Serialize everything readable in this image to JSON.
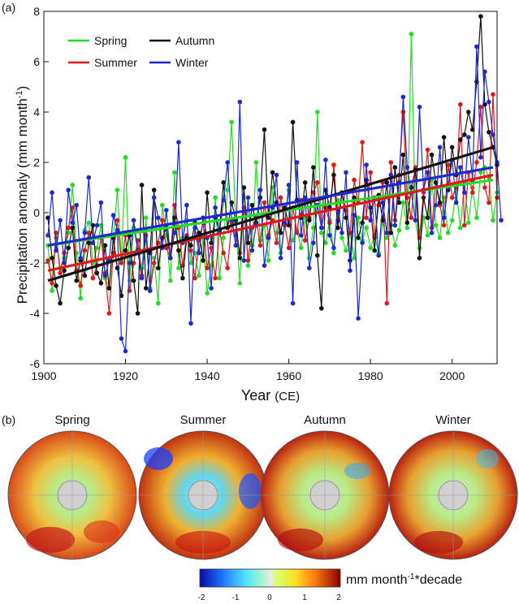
{
  "panel_a": {
    "label": "(a)",
    "ylabel_main": "Precipitation anomaly (mm month",
    "ylabel_sup": "-1",
    "ylabel_close": ")",
    "xlabel_main": "Year",
    "xlabel_unit": "(CE)"
  },
  "panel_b": {
    "label": "(b)",
    "maps": [
      {
        "title": "Spring"
      },
      {
        "title": "Summer"
      },
      {
        "title": "Autumn"
      },
      {
        "title": "Winter"
      }
    ],
    "colorbar": {
      "unit_main": "mm month",
      "unit_sup": "-1",
      "unit_tail": "*decade",
      "ticks": [
        "-2",
        "-1",
        "0",
        "1",
        "2"
      ],
      "range": [
        -2,
        2
      ]
    }
  },
  "colors": {
    "Spring": "#22dd22",
    "Summer": "#e01818",
    "Autumn": "#111111",
    "Winter": "#1a2ad0"
  },
  "chart_data": {
    "type": "line",
    "xlim": [
      1900,
      2011
    ],
    "ylim": [
      -6,
      8
    ],
    "xticks": [
      1900,
      1920,
      1940,
      1960,
      1980,
      2000
    ],
    "yticks": [
      -6,
      -4,
      -2,
      0,
      2,
      4,
      6,
      8
    ],
    "grid": false,
    "legend_position": "top-left",
    "x_start": 1901,
    "series": [
      {
        "name": "Spring",
        "values": [
          -1.3,
          -3.1,
          -1.0,
          -2.2,
          -1.8,
          -0.8,
          1.1,
          -1.6,
          -3.4,
          -0.7,
          -0.4,
          -2.0,
          -1.4,
          -0.5,
          -2.6,
          -3.0,
          -1.0,
          0.9,
          -1.9,
          2.2,
          -2.7,
          -0.6,
          -1.5,
          -2.2,
          -0.2,
          -3.0,
          -1.8,
          -3.6,
          0.3,
          -0.9,
          -2.7,
          1.6,
          -2.2,
          -1.0,
          -0.3,
          -2.0,
          -1.6,
          -2.5,
          -1.0,
          -3.2,
          -2.1,
          0.6,
          -2.6,
          -1.0,
          0.9,
          3.6,
          -0.4,
          -2.8,
          1.0,
          -2.1,
          -1.3,
          2.0,
          -1.1,
          -0.5,
          -1.9,
          1.0,
          -0.8,
          -1.6,
          -0.4,
          0.9,
          -1.1,
          -0.7,
          -1.4,
          -0.2,
          -1.8,
          -0.6,
          4.0,
          -0.8,
          -1.2,
          -0.3,
          -1.6,
          0.5,
          -1.0,
          -1.5,
          -0.8,
          -1.8,
          -0.2,
          -1.1,
          -0.6,
          -1.4,
          -0.9,
          -1.6,
          -0.4,
          -1.0,
          -0.5,
          -1.3,
          -0.7,
          0.4,
          -0.6,
          7.1,
          -0.3,
          -1.4,
          -0.2,
          -0.9,
          1.3,
          -0.5,
          -1.0,
          0.6,
          -0.8,
          -0.3,
          0.9,
          -0.6,
          1.2,
          -0.4,
          1.0,
          -0.2,
          1.6,
          1.8,
          1.4,
          -0.3,
          0.8
        ]
      },
      {
        "name": "Summer",
        "values": [
          -1.9,
          -2.8,
          -0.8,
          -2.4,
          -1.6,
          -0.6,
          0.2,
          -2.3,
          -2.9,
          -1.5,
          -0.8,
          -2.6,
          -2.1,
          -1.0,
          -2.4,
          -4.0,
          -1.6,
          -0.3,
          -2.0,
          -0.9,
          -3.1,
          -2.0,
          -1.1,
          -2.5,
          -0.9,
          -3.1,
          -2.0,
          -1.2,
          -0.3,
          -1.4,
          -1.8,
          0.3,
          -0.6,
          -2.1,
          -0.9,
          -1.5,
          -2.6,
          -1.1,
          -0.4,
          -2.2,
          -1.4,
          -2.6,
          -0.7,
          -1.6,
          -2.2,
          -0.4,
          -0.9,
          -1.6,
          0.2,
          -1.9,
          -0.6,
          -0.2,
          -1.3,
          0.4,
          -0.9,
          -0.3,
          -1.2,
          0.6,
          -0.5,
          -1.4,
          0.2,
          -0.8,
          0.5,
          -1.1,
          -0.2,
          0.8,
          1.2,
          -0.6,
          0.2,
          -0.4,
          1.9,
          -0.3,
          0.8,
          0.1,
          -0.8,
          1.3,
          0.4,
          2.8,
          -0.2,
          1.6,
          -1.0,
          0.3,
          1.2,
          -3.6,
          2.0,
          -0.3,
          1.5,
          4.0,
          0.6,
          -0.2,
          1.8,
          -1.0,
          0.8,
          2.5,
          -0.6,
          1.2,
          0.3,
          -0.5,
          1.9,
          0.6,
          1.0,
          4.3,
          -0.5,
          1.6,
          0.8,
          2.0,
          4.2,
          1.0,
          0.4,
          4.7,
          0.6
        ]
      },
      {
        "name": "Autumn",
        "values": [
          -0.2,
          -1.8,
          -2.9,
          -3.6,
          -2.3,
          -1.4,
          -0.6,
          -2.7,
          -1.9,
          -2.5,
          -1.2,
          -0.5,
          -2.4,
          -2.8,
          -1.3,
          -3.0,
          -1.0,
          -2.2,
          -3.3,
          -1.5,
          -0.9,
          -2.7,
          -4.0,
          1.1,
          -3.0,
          -1.6,
          0.9,
          -2.2,
          -1.0,
          -0.6,
          -1.8,
          -0.2,
          -1.5,
          -2.6,
          -1.0,
          -1.3,
          -0.4,
          -0.8,
          -1.9,
          0.8,
          -1.2,
          -0.2,
          -0.7,
          1.2,
          -0.6,
          0.4,
          -0.3,
          -1.8,
          1.0,
          -1.2,
          0.3,
          -0.4,
          0.6,
          3.3,
          -0.2,
          1.6,
          0.4,
          -0.8,
          0.2,
          -0.5,
          3.6,
          0.5,
          -0.2,
          1.2,
          -0.3,
          1.8,
          -1.7,
          -3.8,
          0.9,
          0.2,
          1.5,
          -0.6,
          0.8,
          -0.2,
          -1.9,
          0.6,
          -1.0,
          -0.4,
          1.3,
          0.2,
          -1.5,
          0.7,
          -0.3,
          1.2,
          -0.8,
          1.8,
          0.4,
          2.3,
          -0.4,
          1.0,
          1.7,
          -1.8,
          0.6,
          -0.2,
          2.3,
          1.2,
          0.4,
          3.0,
          0.9,
          2.6,
          1.5,
          2.9,
          3.1,
          4.0,
          3.3,
          5.2,
          7.8,
          4.3,
          3.2,
          2.6,
          1.9
        ]
      },
      {
        "name": "Winter",
        "values": [
          -0.9,
          0.8,
          -1.5,
          -0.3,
          -2.0,
          0.9,
          -0.4,
          0.3,
          -1.8,
          -0.8,
          1.4,
          -1.2,
          -0.5,
          0.4,
          -2.5,
          -1.9,
          -0.1,
          -0.7,
          -5.0,
          -5.5,
          -2.0,
          -0.3,
          -1.5,
          -2.6,
          -0.7,
          -3.1,
          0.6,
          -0.2,
          -1.4,
          0.1,
          -1.8,
          -0.8,
          2.8,
          -1.2,
          0.3,
          -4.4,
          -0.6,
          -1.6,
          -0.2,
          -1.0,
          -3.0,
          0.2,
          -0.8,
          0.5,
          2.0,
          -0.3,
          -1.3,
          4.4,
          -1.9,
          0.6,
          -1.5,
          -0.5,
          0.9,
          -2.1,
          -1.0,
          0.2,
          1.5,
          -1.8,
          -0.4,
          1.1,
          -3.6,
          2.0,
          -0.9,
          0.6,
          -2.2,
          -1.2,
          0.3,
          -0.6,
          2.1,
          -0.9,
          -1.4,
          0.1,
          -0.8,
          1.6,
          -2.3,
          -0.1,
          -4.2,
          -1.2,
          1.9,
          -0.3,
          0.6,
          -1.7,
          0.4,
          -0.8,
          1.5,
          -0.5,
          1.2,
          4.6,
          1.8,
          0.8,
          -0.3,
          4.2,
          0.9,
          1.6,
          -0.8,
          0.3,
          2.6,
          -0.2,
          1.0,
          2.1,
          0.4,
          1.8,
          0.8,
          3.0,
          1.3,
          6.6,
          2.2,
          5.6,
          4.4,
          3.1,
          2.0,
          -0.3
        ]
      }
    ],
    "trends": [
      {
        "name": "Spring",
        "x": [
          1901,
          2010
        ],
        "y": [
          -1.3,
          1.3
        ]
      },
      {
        "name": "Summer",
        "x": [
          1901,
          2010
        ],
        "y": [
          -2.3,
          1.5
        ]
      },
      {
        "name": "Autumn",
        "x": [
          1901,
          2010
        ],
        "y": [
          -2.7,
          2.6
        ]
      },
      {
        "name": "Winter",
        "x": [
          1901,
          2010
        ],
        "y": [
          -1.3,
          1.8
        ]
      }
    ]
  }
}
